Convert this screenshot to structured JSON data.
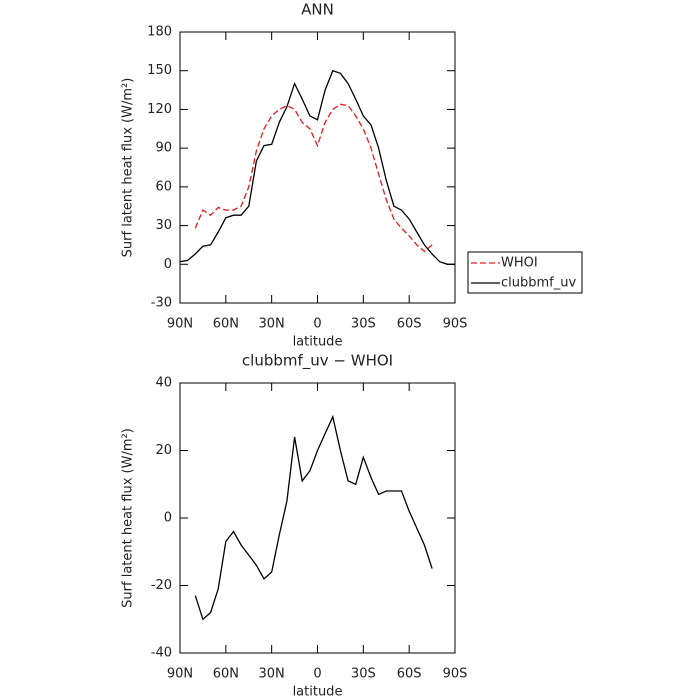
{
  "chart_data": [
    {
      "type": "line",
      "title": "ANN",
      "x_label": "latitude",
      "y_label": "Surf latent heat flux (W/m²)",
      "x": [
        90,
        85,
        80,
        75,
        70,
        65,
        60,
        55,
        50,
        45,
        40,
        35,
        30,
        25,
        20,
        15,
        10,
        5,
        0,
        -5,
        -10,
        -15,
        -20,
        -25,
        -30,
        -35,
        -40,
        -45,
        -50,
        -55,
        -60,
        -65,
        -70,
        -75,
        -80,
        -85,
        -90
      ],
      "series": [
        {
          "name": "WHOI",
          "color": "#e41a1c",
          "dash": true,
          "values": [
            null,
            null,
            28,
            42,
            38,
            44,
            42,
            42,
            45,
            60,
            88,
            105,
            115,
            120,
            123,
            120,
            110,
            105,
            92,
            110,
            120,
            124,
            123,
            115,
            105,
            90,
            70,
            50,
            35,
            28,
            22,
            15,
            10,
            15,
            null,
            null,
            null
          ]
        },
        {
          "name": "clubbmf_uv",
          "color": "#000000",
          "dash": false,
          "values": [
            2,
            3,
            8,
            14,
            15,
            25,
            36,
            38,
            38,
            45,
            80,
            92,
            93,
            110,
            122,
            140,
            128,
            115,
            112,
            135,
            150,
            148,
            140,
            128,
            115,
            108,
            90,
            65,
            45,
            42,
            35,
            25,
            15,
            8,
            2,
            0,
            0
          ]
        }
      ],
      "xlim": [
        90,
        -90
      ],
      "xticks": [
        {
          "value": 90,
          "label": "90N"
        },
        {
          "value": 60,
          "label": "60N"
        },
        {
          "value": 30,
          "label": "30N"
        },
        0,
        {
          "value": -30,
          "label": "30S"
        },
        {
          "value": -60,
          "label": "60S"
        },
        {
          "value": -90,
          "label": "90S"
        }
      ],
      "ylim": [
        -30,
        180
      ],
      "yticks": [
        -30,
        0,
        30,
        60,
        90,
        120,
        150,
        180
      ],
      "legend": "right"
    },
    {
      "type": "line",
      "title": "clubbmf_uv − WHOI",
      "x_label": "latitude",
      "y_label": "Surf latent heat flux (W/m²)",
      "x": [
        80,
        75,
        70,
        65,
        60,
        55,
        50,
        45,
        40,
        35,
        30,
        25,
        20,
        15,
        10,
        5,
        0,
        -5,
        -10,
        -15,
        -20,
        -25,
        -30,
        -35,
        -40,
        -45,
        -50,
        -55,
        -60,
        -65,
        -70,
        -75
      ],
      "series": [
        {
          "color": "#000000",
          "dash": false,
          "values": [
            -23,
            -30,
            -28,
            -21,
            -7,
            -4,
            -8,
            -11,
            -14,
            -18,
            -16,
            -5,
            5,
            24,
            11,
            14,
            20,
            25,
            30,
            20,
            11,
            10,
            18,
            12,
            7,
            8,
            8,
            8,
            2,
            -3,
            -8,
            -15
          ]
        }
      ],
      "xlim": [
        90,
        -90
      ],
      "xticks": [
        {
          "value": 90,
          "label": "90N"
        },
        {
          "value": 60,
          "label": "60N"
        },
        {
          "value": 30,
          "label": "30N"
        },
        0,
        {
          "value": -30,
          "label": "30S"
        },
        {
          "value": -60,
          "label": "60S"
        },
        {
          "value": -90,
          "label": "90S"
        }
      ],
      "ylim": [
        -40,
        40
      ],
      "yticks": [
        -40,
        -20,
        0,
        20,
        40
      ]
    }
  ]
}
